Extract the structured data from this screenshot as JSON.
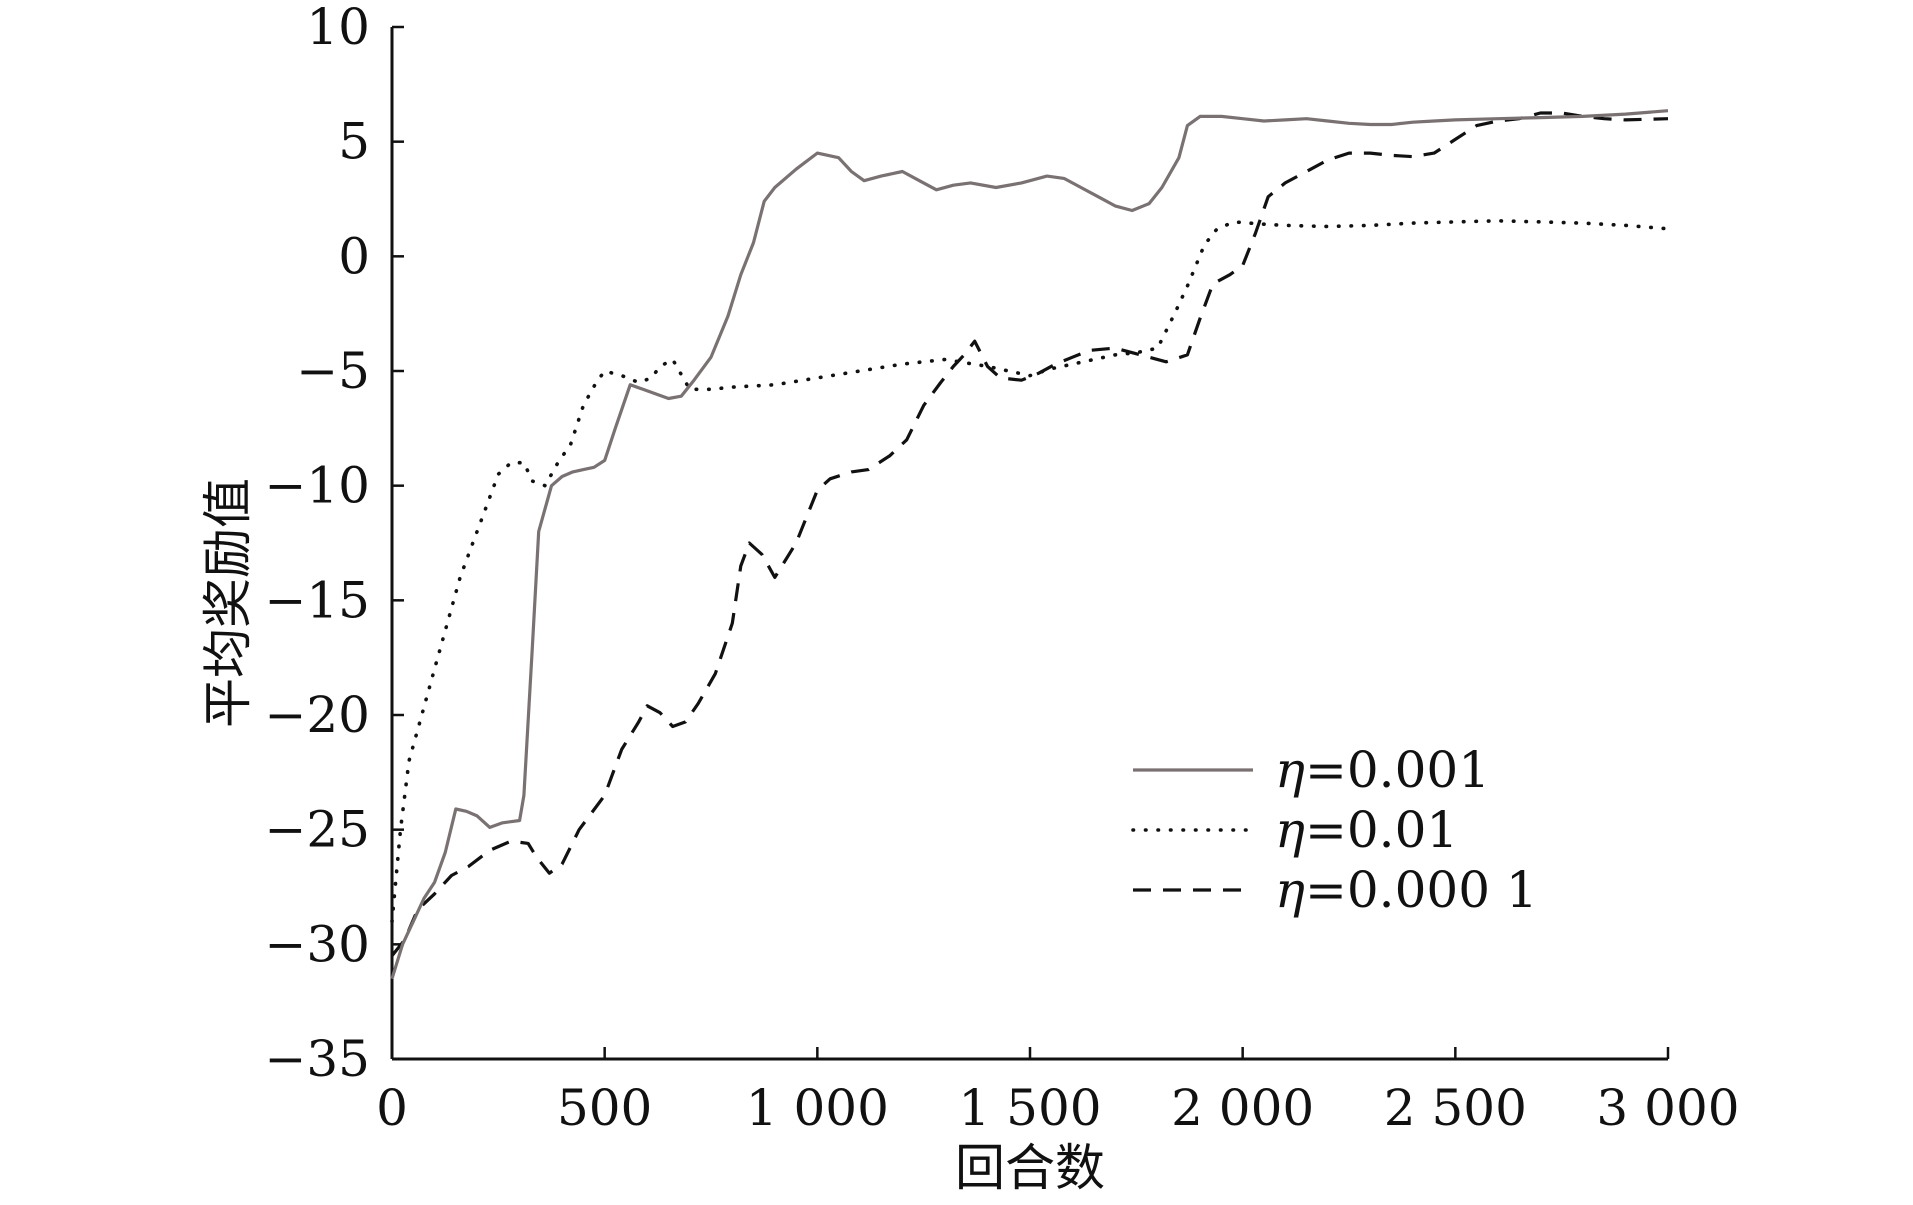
{
  "chart_data": {
    "type": "line",
    "title": "",
    "xlabel": "回合数",
    "ylabel": "平均奖励值",
    "xlim": [
      0,
      3000
    ],
    "ylim": [
      -35,
      10
    ],
    "xticks": [
      0,
      500,
      1000,
      1500,
      2000,
      2500,
      3000
    ],
    "xtick_labels": [
      "0",
      "500",
      "1 000",
      "1 500",
      "2 000",
      "2 500",
      "3 000"
    ],
    "yticks": [
      10,
      5,
      0,
      -5,
      -10,
      -15,
      -20,
      -25,
      -30,
      -35
    ],
    "ytick_labels": [
      "10",
      "5",
      "0",
      "−5",
      "−10",
      "−15",
      "−20",
      "−25",
      "−30",
      "−35"
    ],
    "grid": false,
    "legend_position": "lower-right",
    "series": [
      {
        "name": "η=0.001",
        "eta": "η",
        "value_label": "=0.001",
        "style": "solid",
        "color": "#7a7272",
        "points": [
          [
            0,
            -31.5
          ],
          [
            25,
            -30
          ],
          [
            50,
            -29
          ],
          [
            75,
            -28
          ],
          [
            100,
            -27.3
          ],
          [
            125,
            -26
          ],
          [
            150,
            -24.1
          ],
          [
            175,
            -24.2
          ],
          [
            200,
            -24.4
          ],
          [
            230,
            -24.9
          ],
          [
            260,
            -24.7
          ],
          [
            300,
            -24.6
          ],
          [
            310,
            -23.5
          ],
          [
            330,
            -17
          ],
          [
            345,
            -12
          ],
          [
            360,
            -11
          ],
          [
            375,
            -10
          ],
          [
            400,
            -9.6
          ],
          [
            425,
            -9.4
          ],
          [
            450,
            -9.3
          ],
          [
            475,
            -9.2
          ],
          [
            500,
            -8.9
          ],
          [
            525,
            -7.5
          ],
          [
            560,
            -5.6
          ],
          [
            590,
            -5.8
          ],
          [
            620,
            -6.0
          ],
          [
            650,
            -6.2
          ],
          [
            680,
            -6.1
          ],
          [
            710,
            -5.4
          ],
          [
            750,
            -4.4
          ],
          [
            790,
            -2.6
          ],
          [
            820,
            -0.8
          ],
          [
            850,
            0.6
          ],
          [
            875,
            2.4
          ],
          [
            900,
            3.0
          ],
          [
            950,
            3.8
          ],
          [
            1000,
            4.5
          ],
          [
            1050,
            4.3
          ],
          [
            1080,
            3.7
          ],
          [
            1110,
            3.3
          ],
          [
            1150,
            3.5
          ],
          [
            1200,
            3.7
          ],
          [
            1240,
            3.3
          ],
          [
            1280,
            2.9
          ],
          [
            1320,
            3.1
          ],
          [
            1360,
            3.2
          ],
          [
            1420,
            3.0
          ],
          [
            1480,
            3.2
          ],
          [
            1540,
            3.5
          ],
          [
            1580,
            3.4
          ],
          [
            1620,
            3.0
          ],
          [
            1660,
            2.6
          ],
          [
            1700,
            2.2
          ],
          [
            1740,
            2.0
          ],
          [
            1780,
            2.3
          ],
          [
            1810,
            3.0
          ],
          [
            1850,
            4.3
          ],
          [
            1870,
            5.7
          ],
          [
            1900,
            6.1
          ],
          [
            1950,
            6.1
          ],
          [
            2000,
            6.0
          ],
          [
            2050,
            5.9
          ],
          [
            2100,
            5.95
          ],
          [
            2150,
            6.0
          ],
          [
            2200,
            5.9
          ],
          [
            2250,
            5.8
          ],
          [
            2300,
            5.75
          ],
          [
            2350,
            5.75
          ],
          [
            2400,
            5.85
          ],
          [
            2450,
            5.9
          ],
          [
            2500,
            5.95
          ],
          [
            2600,
            6.0
          ],
          [
            2700,
            6.05
          ],
          [
            2800,
            6.1
          ],
          [
            2900,
            6.2
          ],
          [
            3000,
            6.35
          ]
        ]
      },
      {
        "name": "η=0.01",
        "eta": "η",
        "value_label": "=0.01",
        "style": "dotted",
        "color": "#111111",
        "points": [
          [
            0,
            -29
          ],
          [
            20,
            -25
          ],
          [
            40,
            -22
          ],
          [
            70,
            -20
          ],
          [
            100,
            -18
          ],
          [
            130,
            -16
          ],
          [
            160,
            -14
          ],
          [
            190,
            -12.5
          ],
          [
            220,
            -11
          ],
          [
            250,
            -9.5
          ],
          [
            280,
            -9
          ],
          [
            310,
            -9
          ],
          [
            330,
            -9.8
          ],
          [
            360,
            -10
          ],
          [
            390,
            -9
          ],
          [
            420,
            -8.2
          ],
          [
            450,
            -6.5
          ],
          [
            480,
            -5.5
          ],
          [
            500,
            -5.0
          ],
          [
            540,
            -5.2
          ],
          [
            580,
            -5.5
          ],
          [
            610,
            -5.3
          ],
          [
            630,
            -4.8
          ],
          [
            660,
            -4.5
          ],
          [
            700,
            -5.8
          ],
          [
            750,
            -5.8
          ],
          [
            800,
            -5.7
          ],
          [
            900,
            -5.6
          ],
          [
            1000,
            -5.3
          ],
          [
            1100,
            -5.0
          ],
          [
            1200,
            -4.7
          ],
          [
            1300,
            -4.5
          ],
          [
            1400,
            -4.8
          ],
          [
            1450,
            -5.0
          ],
          [
            1500,
            -5.2
          ],
          [
            1550,
            -4.9
          ],
          [
            1600,
            -4.7
          ],
          [
            1650,
            -4.5
          ],
          [
            1700,
            -4.3
          ],
          [
            1750,
            -4.2
          ],
          [
            1800,
            -4.0
          ],
          [
            1840,
            -2.5
          ],
          [
            1870,
            -1.3
          ],
          [
            1890,
            -0.4
          ],
          [
            1910,
            0.5
          ],
          [
            1940,
            1.2
          ],
          [
            1980,
            1.5
          ],
          [
            2050,
            1.4
          ],
          [
            2100,
            1.35
          ],
          [
            2200,
            1.3
          ],
          [
            2300,
            1.35
          ],
          [
            2400,
            1.45
          ],
          [
            2500,
            1.5
          ],
          [
            2600,
            1.55
          ],
          [
            2700,
            1.5
          ],
          [
            2800,
            1.45
          ],
          [
            2900,
            1.35
          ],
          [
            3000,
            1.2
          ]
        ]
      },
      {
        "name": "η=0.000 1",
        "eta": "η",
        "value_label": "=0.000 1",
        "style": "dashed",
        "color": "#111111",
        "points": [
          [
            0,
            -30.5
          ],
          [
            30,
            -29.8
          ],
          [
            60,
            -28.5
          ],
          [
            100,
            -27.8
          ],
          [
            140,
            -27
          ],
          [
            180,
            -26.6
          ],
          [
            230,
            -25.9
          ],
          [
            280,
            -25.5
          ],
          [
            320,
            -25.6
          ],
          [
            340,
            -26.2
          ],
          [
            370,
            -26.9
          ],
          [
            400,
            -26.5
          ],
          [
            440,
            -25
          ],
          [
            500,
            -23.5
          ],
          [
            540,
            -21.5
          ],
          [
            580,
            -20.3
          ],
          [
            600,
            -19.6
          ],
          [
            630,
            -19.9
          ],
          [
            660,
            -20.5
          ],
          [
            690,
            -20.3
          ],
          [
            720,
            -19.5
          ],
          [
            760,
            -18.2
          ],
          [
            800,
            -16
          ],
          [
            820,
            -13.5
          ],
          [
            840,
            -12.5
          ],
          [
            870,
            -13
          ],
          [
            900,
            -14
          ],
          [
            950,
            -12.5
          ],
          [
            1000,
            -10.2
          ],
          [
            1030,
            -9.7
          ],
          [
            1080,
            -9.4
          ],
          [
            1120,
            -9.3
          ],
          [
            1170,
            -8.7
          ],
          [
            1210,
            -8
          ],
          [
            1250,
            -6.5
          ],
          [
            1290,
            -5.5
          ],
          [
            1320,
            -4.8
          ],
          [
            1345,
            -4.3
          ],
          [
            1370,
            -3.7
          ],
          [
            1400,
            -4.8
          ],
          [
            1430,
            -5.3
          ],
          [
            1480,
            -5.4
          ],
          [
            1520,
            -5.1
          ],
          [
            1560,
            -4.7
          ],
          [
            1600,
            -4.4
          ],
          [
            1640,
            -4.1
          ],
          [
            1700,
            -4.0
          ],
          [
            1760,
            -4.3
          ],
          [
            1820,
            -4.6
          ],
          [
            1870,
            -4.3
          ],
          [
            1900,
            -2.7
          ],
          [
            1930,
            -1.2
          ],
          [
            1970,
            -0.8
          ],
          [
            2000,
            -0.4
          ],
          [
            2030,
            1.0
          ],
          [
            2060,
            2.6
          ],
          [
            2100,
            3.2
          ],
          [
            2150,
            3.7
          ],
          [
            2200,
            4.2
          ],
          [
            2250,
            4.5
          ],
          [
            2300,
            4.5
          ],
          [
            2350,
            4.4
          ],
          [
            2400,
            4.35
          ],
          [
            2450,
            4.5
          ],
          [
            2500,
            5.1
          ],
          [
            2550,
            5.7
          ],
          [
            2600,
            5.9
          ],
          [
            2650,
            6.0
          ],
          [
            2700,
            6.25
          ],
          [
            2750,
            6.25
          ],
          [
            2800,
            6.1
          ],
          [
            2850,
            6.0
          ],
          [
            2900,
            5.95
          ],
          [
            3000,
            6.0
          ]
        ]
      }
    ]
  }
}
